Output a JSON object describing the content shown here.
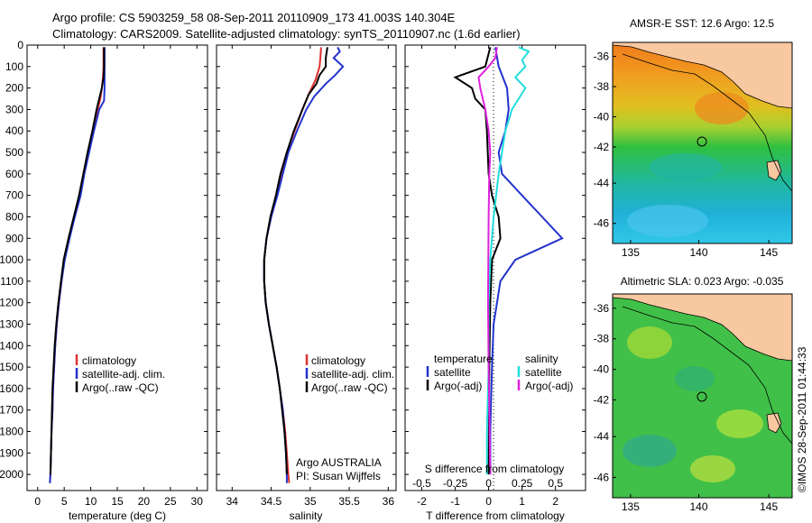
{
  "header": {
    "line1": "Argo profile: CS 5903259_58 08-Sep-2011 20110909_173 41.003S 140.304E",
    "line2": "Climatology: CARS2009. Satellite-adjusted climatology: synTS_20110907.nc (1.6d earlier)"
  },
  "legend_main": {
    "items": [
      {
        "label": "climatology",
        "color": "#e03030"
      },
      {
        "label": "satellite-adj. clim.",
        "color": "#2233cc"
      },
      {
        "label": "Argo(..raw -QC)",
        "color": "#000000"
      }
    ]
  },
  "legend_diff": {
    "temp_head": "temperature",
    "sal_head": "salinity",
    "temp_items": [
      {
        "label": "satellite",
        "color": "#2233cc"
      },
      {
        "label": "Argo(-adj)",
        "color": "#000000"
      }
    ],
    "sal_items": [
      {
        "label": "satellite",
        "color": "#22dddd"
      },
      {
        "label": "Argo(-adj)",
        "color": "#dd22dd"
      }
    ]
  },
  "attribution": {
    "line1": "Argo AUSTRALIA",
    "line2": "PI: Susan Wijffels"
  },
  "stamp": "©IMOS 28-Sep-2011 01:44:33",
  "maps": {
    "sst_title": "AMSR-E SST: 12.6 Argo: 12.5",
    "sla_title": "Altimetric SLA: 0.023 Argo: -0.035",
    "lat_ticks": [
      "-36",
      "-38",
      "-40",
      "-42",
      "-44",
      "-46"
    ],
    "lon_ticks": [
      "135",
      "140",
      "145"
    ],
    "float_lon": 140.3,
    "float_lat": -41.0,
    "land_color": "#f8c8a0"
  },
  "chart_data": [
    {
      "type": "line",
      "name": "temperature",
      "xlabel": "temperature (deg C)",
      "xlim": [
        -2,
        32
      ],
      "xticks": [
        0,
        5,
        10,
        15,
        20,
        25,
        30
      ],
      "ylim": [
        2075,
        0
      ],
      "yticks": [
        0,
        100,
        200,
        300,
        400,
        500,
        600,
        700,
        800,
        900,
        1000,
        1100,
        1200,
        1300,
        1400,
        1500,
        1600,
        1700,
        1800,
        1900,
        2000
      ],
      "series": [
        {
          "name": "climatology",
          "color": "#e03030",
          "points": [
            [
              12.4,
              10
            ],
            [
              12.4,
              100
            ],
            [
              12.3,
              150
            ],
            [
              12.1,
              200
            ],
            [
              11.8,
              250
            ],
            [
              11.3,
              300
            ],
            [
              10.5,
              400
            ],
            [
              9.5,
              500
            ],
            [
              8.6,
              600
            ],
            [
              7.9,
              700
            ],
            [
              6.9,
              800
            ],
            [
              5.9,
              900
            ],
            [
              5.0,
              1000
            ],
            [
              4.5,
              1100
            ],
            [
              4.0,
              1200
            ],
            [
              3.6,
              1300
            ],
            [
              3.3,
              1400
            ],
            [
              3.1,
              1500
            ],
            [
              2.9,
              1600
            ],
            [
              2.8,
              1700
            ],
            [
              2.6,
              1800
            ],
            [
              2.5,
              1900
            ],
            [
              2.4,
              2000
            ],
            [
              2.3,
              2040
            ]
          ]
        },
        {
          "name": "satellite-adj. clim.",
          "color": "#2233cc",
          "points": [
            [
              12.6,
              10
            ],
            [
              12.6,
              100
            ],
            [
              12.6,
              150
            ],
            [
              12.6,
              200
            ],
            [
              12.5,
              260
            ],
            [
              11.6,
              300
            ],
            [
              10.6,
              400
            ],
            [
              9.7,
              500
            ],
            [
              8.8,
              600
            ],
            [
              8.1,
              700
            ],
            [
              7.0,
              800
            ],
            [
              6.0,
              900
            ],
            [
              5.1,
              1000
            ],
            [
              4.5,
              1100
            ],
            [
              4.0,
              1200
            ],
            [
              3.6,
              1300
            ],
            [
              3.3,
              1400
            ],
            [
              3.1,
              1500
            ],
            [
              2.9,
              1600
            ],
            [
              2.8,
              1700
            ],
            [
              2.6,
              1800
            ],
            [
              2.5,
              1900
            ],
            [
              2.4,
              2000
            ],
            [
              2.3,
              2040
            ]
          ]
        },
        {
          "name": "Argo(..raw -QC)",
          "color": "#000000",
          "points": [
            [
              12.5,
              10
            ],
            [
              12.5,
              100
            ],
            [
              12.4,
              150
            ],
            [
              12.1,
              200
            ],
            [
              11.5,
              260
            ],
            [
              11.1,
              300
            ],
            [
              10.3,
              400
            ],
            [
              9.4,
              500
            ],
            [
              8.6,
              600
            ],
            [
              7.8,
              700
            ],
            [
              6.8,
              800
            ],
            [
              5.8,
              900
            ],
            [
              4.9,
              1000
            ],
            [
              4.4,
              1100
            ],
            [
              3.9,
              1200
            ],
            [
              3.5,
              1300
            ],
            [
              3.2,
              1400
            ],
            [
              3.0,
              1500
            ],
            [
              2.8,
              1600
            ],
            [
              2.7,
              1700
            ],
            [
              2.6,
              1800
            ],
            [
              2.5,
              1900
            ],
            [
              2.4,
              2000
            ]
          ]
        }
      ]
    },
    {
      "type": "line",
      "name": "salinity",
      "xlabel": "salinity",
      "xlim": [
        33.8,
        36.1
      ],
      "xticks": [
        34,
        34.5,
        35,
        35.5,
        36
      ],
      "ylim": [
        2075,
        0
      ],
      "series": [
        {
          "name": "climatology",
          "color": "#e03030",
          "points": [
            [
              35.14,
              10
            ],
            [
              35.13,
              60
            ],
            [
              35.12,
              100
            ],
            [
              35.07,
              160
            ],
            [
              34.98,
              230
            ],
            [
              34.9,
              300
            ],
            [
              34.8,
              400
            ],
            [
              34.7,
              500
            ],
            [
              34.63,
              600
            ],
            [
              34.57,
              700
            ],
            [
              34.5,
              800
            ],
            [
              34.44,
              900
            ],
            [
              34.41,
              1000
            ],
            [
              34.41,
              1100
            ],
            [
              34.43,
              1200
            ],
            [
              34.47,
              1300
            ],
            [
              34.52,
              1400
            ],
            [
              34.57,
              1500
            ],
            [
              34.61,
              1600
            ],
            [
              34.65,
              1700
            ],
            [
              34.68,
              1800
            ],
            [
              34.7,
              1900
            ],
            [
              34.72,
              2000
            ],
            [
              34.73,
              2040
            ]
          ]
        },
        {
          "name": "satellite-adj. clim.",
          "color": "#2233cc",
          "points": [
            [
              35.35,
              10
            ],
            [
              35.38,
              30
            ],
            [
              35.3,
              60
            ],
            [
              35.42,
              100
            ],
            [
              35.32,
              140
            ],
            [
              35.2,
              180
            ],
            [
              35.05,
              240
            ],
            [
              34.95,
              300
            ],
            [
              34.83,
              400
            ],
            [
              34.72,
              500
            ],
            [
              34.65,
              600
            ],
            [
              34.58,
              700
            ],
            [
              34.5,
              800
            ],
            [
              34.44,
              900
            ],
            [
              34.41,
              1000
            ],
            [
              34.41,
              1100
            ],
            [
              34.43,
              1200
            ],
            [
              34.47,
              1300
            ],
            [
              34.52,
              1400
            ],
            [
              34.57,
              1500
            ],
            [
              34.61,
              1600
            ],
            [
              34.65,
              1700
            ],
            [
              34.67,
              1800
            ],
            [
              34.69,
              1900
            ],
            [
              34.7,
              2000
            ],
            [
              34.7,
              2040
            ]
          ]
        },
        {
          "name": "Argo(..raw -QC)",
          "color": "#000000",
          "points": [
            [
              35.22,
              10
            ],
            [
              35.2,
              60
            ],
            [
              35.2,
              100
            ],
            [
              35.12,
              140
            ],
            [
              35.08,
              180
            ],
            [
              34.98,
              230
            ],
            [
              34.9,
              300
            ],
            [
              34.79,
              400
            ],
            [
              34.7,
              500
            ],
            [
              34.62,
              600
            ],
            [
              34.56,
              700
            ],
            [
              34.49,
              800
            ],
            [
              34.44,
              900
            ],
            [
              34.41,
              1000
            ],
            [
              34.41,
              1100
            ],
            [
              34.43,
              1200
            ],
            [
              34.47,
              1300
            ],
            [
              34.52,
              1400
            ],
            [
              34.57,
              1500
            ],
            [
              34.61,
              1600
            ],
            [
              34.64,
              1700
            ],
            [
              34.67,
              1800
            ],
            [
              34.69,
              1900
            ],
            [
              34.7,
              2000
            ]
          ]
        }
      ]
    },
    {
      "type": "line",
      "name": "difference",
      "xlabel": "T difference from climatology",
      "xlabel_top": "S difference from climatology",
      "xlim": [
        -2.5,
        2.9
      ],
      "xticks": [
        -2,
        -1,
        0,
        1,
        2
      ],
      "xticks_top": [
        "-0.5",
        "-0.25",
        "0",
        "0.25",
        "0.5"
      ],
      "xticks_top_pos": [
        -2,
        -1,
        0,
        1,
        2
      ],
      "ylim": [
        2075,
        0
      ],
      "series": [
        {
          "name": "temperature satellite",
          "color": "#2233cc",
          "points": [
            [
              0.2,
              10
            ],
            [
              0.3,
              100
            ],
            [
              0.55,
              200
            ],
            [
              0.6,
              300
            ],
            [
              0.5,
              400
            ],
            [
              0.3,
              500
            ],
            [
              0.4,
              600
            ],
            [
              1.0,
              700
            ],
            [
              1.6,
              800
            ],
            [
              2.2,
              900
            ],
            [
              0.8,
              1000
            ],
            [
              0.35,
              1100
            ],
            [
              0.25,
              1200
            ],
            [
              0.15,
              1300
            ],
            [
              0.1,
              1500
            ],
            [
              0.05,
              1800
            ],
            [
              0.05,
              2000
            ]
          ]
        },
        {
          "name": "temperature Argo(-adj)",
          "color": "#000000",
          "points": [
            [
              0.05,
              10
            ],
            [
              -0.1,
              100
            ],
            [
              -1.0,
              150
            ],
            [
              -0.5,
              200
            ],
            [
              -0.4,
              250
            ],
            [
              -0.1,
              300
            ],
            [
              -0.05,
              400
            ],
            [
              0.0,
              600
            ],
            [
              0.1,
              700
            ],
            [
              0.3,
              800
            ],
            [
              0.35,
              900
            ],
            [
              0.1,
              1000
            ],
            [
              0.05,
              1200
            ],
            [
              0.02,
              1500
            ],
            [
              0.0,
              2000
            ]
          ]
        },
        {
          "name": "salinity satellite",
          "color": "#22dddd",
          "points": [
            [
              0.9,
              10
            ],
            [
              1.2,
              30
            ],
            [
              1.0,
              70
            ],
            [
              1.1,
              100
            ],
            [
              0.8,
              150
            ],
            [
              1.1,
              200
            ],
            [
              0.7,
              300
            ],
            [
              0.5,
              400
            ],
            [
              0.3,
              600
            ],
            [
              0.15,
              800
            ],
            [
              0.05,
              1000
            ],
            [
              0.0,
              1200
            ],
            [
              0.0,
              1500
            ],
            [
              -0.05,
              1800
            ],
            [
              -0.05,
              2000
            ]
          ]
        },
        {
          "name": "salinity Argo(-adj)",
          "color": "#dd22dd",
          "points": [
            [
              0.25,
              10
            ],
            [
              0.2,
              60
            ],
            [
              0.0,
              100
            ],
            [
              -0.3,
              150
            ],
            [
              -0.25,
              200
            ],
            [
              -0.1,
              300
            ],
            [
              0.0,
              400
            ],
            [
              0.05,
              500
            ],
            [
              0.02,
              600
            ],
            [
              0.0,
              800
            ],
            [
              -0.02,
              1200
            ],
            [
              0.0,
              1500
            ],
            [
              0.05,
              2000
            ]
          ]
        }
      ]
    }
  ]
}
